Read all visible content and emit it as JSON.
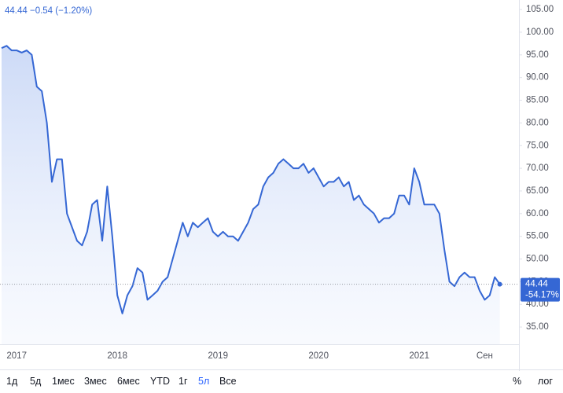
{
  "chart_data": {
    "type": "area",
    "header": "44.44 −0.54 (−1.20%)",
    "categories": [
      null,
      null,
      null,
      "2017",
      null,
      null,
      null,
      null,
      null,
      null,
      null,
      null,
      null,
      null,
      null,
      null,
      null,
      null,
      null,
      null,
      null,
      null,
      null,
      "2018",
      null,
      null,
      null,
      null,
      null,
      null,
      null,
      null,
      null,
      null,
      null,
      null,
      null,
      null,
      null,
      null,
      null,
      null,
      null,
      "2019",
      null,
      null,
      null,
      null,
      null,
      null,
      null,
      null,
      null,
      null,
      null,
      null,
      null,
      null,
      null,
      null,
      null,
      null,
      null,
      "2020",
      null,
      null,
      null,
      null,
      null,
      null,
      null,
      null,
      null,
      null,
      null,
      null,
      null,
      null,
      null,
      null,
      null,
      null,
      null,
      "2021",
      null,
      null,
      null,
      null,
      null,
      null,
      null,
      null,
      null,
      null,
      null,
      null,
      "Сен",
      null,
      null,
      null
    ],
    "values": [
      96.5,
      97,
      96,
      96,
      95.5,
      96,
      95,
      88,
      87,
      80,
      67,
      72,
      72,
      60,
      57,
      54,
      53,
      56,
      62,
      63,
      54,
      66,
      55,
      42,
      38,
      42,
      44,
      48,
      47,
      41,
      42,
      43,
      45,
      46,
      50,
      54,
      58,
      55,
      58,
      57,
      58,
      59,
      56,
      55,
      56,
      55,
      55,
      54,
      56,
      58,
      61,
      62,
      66,
      68,
      69,
      71,
      72,
      71,
      70,
      70,
      71,
      69,
      70,
      68,
      66,
      67,
      67,
      68,
      66,
      67,
      63,
      64,
      62,
      61,
      60,
      58,
      59,
      59,
      60,
      64,
      64,
      62,
      70,
      67,
      62,
      62,
      62,
      60,
      52,
      45,
      44,
      46,
      47,
      46,
      46,
      43,
      41,
      42,
      46,
      44.44
    ],
    "color": "#3567d4",
    "ylim": [
      31.2,
      107.1
    ],
    "yticks": [
      {
        "value": 35,
        "label": "35.00"
      },
      {
        "value": 40,
        "label": "40.00"
      },
      {
        "value": 45,
        "label": "45.00"
      },
      {
        "value": 50,
        "label": "50.00"
      },
      {
        "value": 55,
        "label": "55.00"
      },
      {
        "value": 60,
        "label": "60.00"
      },
      {
        "value": 65,
        "label": "65.00"
      },
      {
        "value": 70,
        "label": "70.00"
      },
      {
        "value": 75,
        "label": "75.00"
      },
      {
        "value": 80,
        "label": "80.00"
      },
      {
        "value": 85,
        "label": "85.00"
      },
      {
        "value": 90,
        "label": "90.00"
      },
      {
        "value": 95,
        "label": "95.00"
      },
      {
        "value": 100,
        "label": "100.00"
      },
      {
        "value": 105,
        "label": "105.00"
      }
    ],
    "last_label": "44.44",
    "change_label": "-54.17%",
    "ranges": [
      "1д",
      "5д",
      "1мес",
      "3мес",
      "6мес",
      "YTD",
      "1г",
      "5л",
      "Все"
    ],
    "active_range": "5л",
    "scale_buttons": [
      "%",
      "лог"
    ]
  }
}
